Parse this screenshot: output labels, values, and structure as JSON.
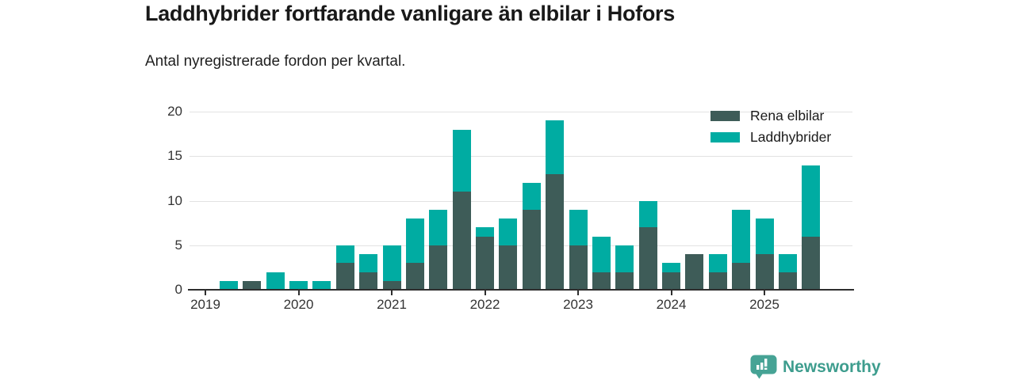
{
  "header": {
    "title": "Laddhybrider fortfarande vanligare än elbilar i Hofors",
    "subtitle": "Antal nyregistrerade fordon per kvartal."
  },
  "legend": {
    "items": [
      {
        "label": "Rena elbilar",
        "color": "#3e5c58"
      },
      {
        "label": "Laddhybrider",
        "color": "#00aca2"
      }
    ]
  },
  "footer": {
    "brand": "Newsworthy",
    "logo_icon": "bar-chart-speech-bubble-icon",
    "brand_color": "#3e9d8e"
  },
  "colors": {
    "dark_teal": "#3e5c58",
    "bright_teal": "#00aca2",
    "gridline": "#e2e2e2",
    "axis": "#2e2e2e",
    "text": "#191919"
  },
  "chart_data": {
    "type": "bar",
    "stacked": true,
    "title": "Laddhybrider fortfarande vanligare än elbilar i Hofors",
    "subtitle": "Antal nyregistrerade fordon per kvartal.",
    "categories": [
      "2019 Q1",
      "2019 Q2",
      "2019 Q3",
      "2019 Q4",
      "2020 Q1",
      "2020 Q2",
      "2020 Q3",
      "2020 Q4",
      "2021 Q1",
      "2021 Q2",
      "2021 Q3",
      "2021 Q4",
      "2022 Q1",
      "2022 Q2",
      "2022 Q3",
      "2022 Q4",
      "2023 Q1",
      "2023 Q2",
      "2023 Q3",
      "2023 Q4",
      "2024 Q1",
      "2024 Q2",
      "2024 Q3",
      "2024 Q4",
      "2025 Q1",
      "2025 Q2",
      "2025 Q3"
    ],
    "series": [
      {
        "name": "Rena elbilar",
        "color": "#3e5c58",
        "values": [
          0,
          0,
          1,
          0,
          0,
          0,
          3,
          2,
          1,
          3,
          5,
          11,
          6,
          5,
          9,
          13,
          5,
          2,
          2,
          7,
          2,
          4,
          2,
          3,
          4,
          2,
          6
        ]
      },
      {
        "name": "Laddhybrider",
        "color": "#00aca2",
        "values": [
          0,
          1,
          0,
          2,
          1,
          1,
          2,
          2,
          4,
          5,
          4,
          7,
          1,
          3,
          3,
          6,
          4,
          4,
          3,
          3,
          1,
          0,
          2,
          6,
          4,
          2,
          8
        ]
      }
    ],
    "x_tick_labels": [
      "2019",
      "2020",
      "2021",
      "2022",
      "2023",
      "2024",
      "2025"
    ],
    "y_ticks": [
      0,
      5,
      10,
      15,
      20
    ],
    "ylim": [
      0,
      20
    ],
    "xlabel": "",
    "ylabel": "",
    "grid": "horizontal",
    "legend_position": "top-right"
  }
}
